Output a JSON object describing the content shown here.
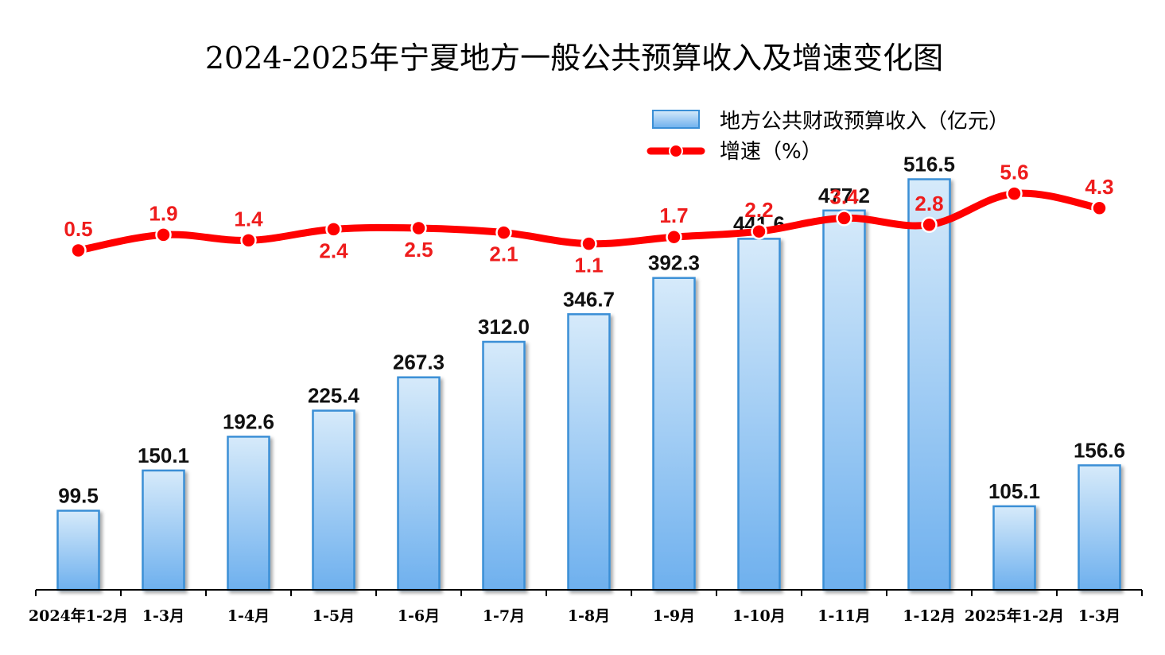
{
  "chart_data": {
    "type": "bar",
    "title": "2024-2025年宁夏地方一般公共预算收入及增速变化图",
    "categories": [
      "2024年1-2月",
      "1-3月",
      "1-4月",
      "1-5月",
      "1-6月",
      "1-7月",
      "1-8月",
      "1-9月",
      "1-10月",
      "1-11月",
      "1-12月",
      "2025年1-2月",
      "1-3月"
    ],
    "series": [
      {
        "name": "地方公共财政预算收入（亿元）",
        "type": "bar",
        "axis": "left",
        "values": [
          99.5,
          150.1,
          192.6,
          225.4,
          267.3,
          312.0,
          346.7,
          392.3,
          441.6,
          477.2,
          516.5,
          105.1,
          156.6
        ],
        "labels": [
          "99.5",
          "150.1",
          "192.6",
          "225.4",
          "267.3",
          "312.0",
          "346.7",
          "392.3",
          "441.6",
          "477.2",
          "516.5",
          "105.1",
          "156.6"
        ],
        "color": "#5b9bd5"
      },
      {
        "name": "增速（%）",
        "type": "line",
        "axis": "right",
        "values": [
          0.5,
          1.9,
          1.4,
          2.4,
          2.5,
          2.1,
          1.1,
          1.7,
          2.2,
          3.4,
          2.8,
          5.6,
          4.3
        ],
        "labels": [
          "0.5",
          "1.9",
          "1.4",
          "2.4",
          "2.5",
          "2.1",
          "1.1",
          "1.7",
          "2.2",
          "3.4",
          "2.8",
          "5.6",
          "4.3"
        ],
        "label_position": [
          "above",
          "above",
          "above",
          "below",
          "below",
          "below",
          "below",
          "above",
          "above",
          "above",
          "above",
          "above",
          "above"
        ],
        "color": "#ff0000"
      }
    ],
    "left_axis": {
      "range": [
        0,
        700
      ],
      "visible": false
    },
    "right_axis": {
      "range": [
        -30,
        20
      ],
      "visible": false
    },
    "grid": false,
    "legend_position": "top-right"
  }
}
